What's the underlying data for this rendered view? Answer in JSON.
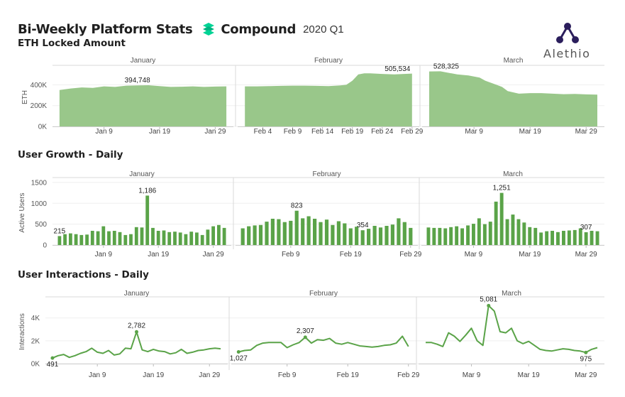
{
  "header": {
    "title": "Bi-Weekly Platform Stats",
    "brand": "Compound",
    "period": "2020 Q1",
    "logo_text": "Alethio"
  },
  "colors": {
    "area_fill": "#99c78a",
    "bar_fill": "#5aa348",
    "line_stroke": "#5aa348",
    "grid": "#d9d9d9",
    "brand": "#00d395",
    "logo": "#2b1e5c"
  },
  "chart_data": [
    {
      "id": "eth_locked",
      "section_title": "ETH Locked Amount",
      "type": "area",
      "ylabel": "ETH",
      "ylim": [
        0,
        560000
      ],
      "yticks": [
        0,
        200000,
        400000
      ],
      "ytick_labels": [
        "0K",
        "200K",
        "400K"
      ],
      "months": [
        {
          "name": "January",
          "days": 31,
          "xticks": [
            9,
            19,
            29
          ],
          "xtick_labels": [
            "Jan 9",
            "Jan 19",
            "Jan 29"
          ],
          "x": [
            1,
            3,
            5,
            7,
            9,
            11,
            13,
            15,
            17,
            19,
            21,
            23,
            25,
            27,
            29,
            31
          ],
          "y": [
            350000,
            365000,
            375000,
            370000,
            385000,
            380000,
            392000,
            394748,
            396000,
            388000,
            380000,
            382000,
            385000,
            380000,
            383000,
            385000
          ],
          "annotation": {
            "x": 15,
            "y": 394748,
            "label": "394,748"
          }
        },
        {
          "name": "February",
          "days": 29,
          "xticks": [
            4,
            9,
            14,
            19,
            24,
            29
          ],
          "xtick_labels": [
            "Feb 4",
            "Feb 9",
            "Feb 14",
            "Feb 19",
            "Feb 24",
            "Feb 29"
          ],
          "x": [
            1,
            3,
            5,
            7,
            9,
            11,
            13,
            15,
            17,
            18,
            19,
            20,
            21,
            22,
            24,
            26,
            28,
            29
          ],
          "y": [
            385000,
            385000,
            387000,
            390000,
            392000,
            392000,
            390000,
            388000,
            395000,
            400000,
            440000,
            500000,
            510000,
            510000,
            505000,
            500000,
            505534,
            508000
          ],
          "annotation": {
            "x": 28,
            "y": 505534,
            "label": "505,534"
          }
        },
        {
          "name": "March",
          "days": 31,
          "xticks": [
            9,
            19,
            29
          ],
          "xtick_labels": [
            "Mar 9",
            "Mar 19",
            "Mar 29"
          ],
          "x": [
            1,
            3,
            5,
            6,
            8,
            10,
            11,
            12,
            13,
            14,
            15,
            17,
            19,
            21,
            23,
            25,
            27,
            29,
            31
          ],
          "y": [
            528325,
            530000,
            510000,
            500000,
            490000,
            470000,
            440000,
            420000,
            400000,
            380000,
            340000,
            315000,
            320000,
            320000,
            315000,
            310000,
            312000,
            308000,
            306000
          ],
          "annotation": {
            "x": 2,
            "y": 528325,
            "label": "528,325"
          }
        }
      ]
    },
    {
      "id": "user_growth",
      "section_title": "User Growth - Daily",
      "type": "bar",
      "ylabel": "Active Users",
      "ylim": [
        0,
        1550
      ],
      "yticks": [
        0,
        500,
        1000,
        1500
      ],
      "ytick_labels": [
        "0",
        "500",
        "1000",
        "1500"
      ],
      "months": [
        {
          "name": "January",
          "days": 31,
          "xticks": [
            9,
            19,
            29
          ],
          "xtick_labels": [
            "Jan 9",
            "Jan 19",
            "Jan 29"
          ],
          "values": [
            215,
            260,
            280,
            260,
            240,
            250,
            340,
            330,
            450,
            330,
            340,
            310,
            240,
            260,
            430,
            420,
            1186,
            410,
            340,
            350,
            310,
            320,
            300,
            260,
            320,
            300,
            240,
            370,
            450,
            480,
            410
          ],
          "annotation": {
            "day": 17,
            "label": "1,186",
            "also": {
              "day": 1,
              "label": "215"
            }
          }
        },
        {
          "name": "February",
          "days": 29,
          "xticks": [
            9,
            19,
            29
          ],
          "xtick_labels": [
            "Feb 9",
            "Feb 19",
            "Feb 29"
          ],
          "values": [
            400,
            450,
            470,
            480,
            560,
            630,
            620,
            550,
            580,
            823,
            640,
            690,
            630,
            550,
            610,
            480,
            570,
            520,
            400,
            440,
            354,
            390,
            460,
            420,
            460,
            490,
            640,
            550,
            410
          ],
          "annotation": {
            "day": 10,
            "label": "823",
            "also": {
              "day": 21,
              "label": "354"
            }
          }
        },
        {
          "name": "March",
          "days": 31,
          "xticks": [
            9,
            19,
            29
          ],
          "xtick_labels": [
            "Mar 9",
            "Mar 19",
            "Mar 29"
          ],
          "values": [
            420,
            410,
            410,
            400,
            430,
            450,
            400,
            470,
            510,
            640,
            500,
            560,
            1040,
            1251,
            620,
            730,
            620,
            540,
            430,
            410,
            300,
            330,
            340,
            310,
            340,
            350,
            360,
            400,
            307,
            340,
            330
          ],
          "annotation": {
            "day": 14,
            "label": "1,251",
            "also": {
              "day": 29,
              "label": "307"
            }
          }
        }
      ]
    },
    {
      "id": "user_interactions",
      "section_title": "User Interactions - Daily",
      "type": "line",
      "ylabel": "Interactions",
      "ylim": [
        0,
        5600
      ],
      "yticks": [
        0,
        2000,
        4000
      ],
      "ytick_labels": [
        "0K",
        "2K",
        "4K"
      ],
      "months": [
        {
          "name": "January",
          "days": 31,
          "xticks": [
            9,
            19,
            29
          ],
          "xtick_labels": [
            "Jan 9",
            "Jan 19",
            "Jan 29"
          ],
          "values": [
            491,
            700,
            800,
            550,
            700,
            900,
            1050,
            1350,
            1000,
            900,
            1150,
            750,
            850,
            1350,
            1300,
            2782,
            1200,
            1050,
            1250,
            1100,
            1050,
            850,
            950,
            1250,
            900,
            1000,
            1150,
            1200,
            1300,
            1350,
            1300
          ],
          "annotation": {
            "day": 16,
            "label": "2,782",
            "also": {
              "day": 1,
              "label": "491"
            }
          }
        },
        {
          "name": "February",
          "days": 29,
          "xticks": [
            9,
            19,
            29
          ],
          "xtick_labels": [
            "Feb 9",
            "Feb 19",
            "Feb 29"
          ],
          "values": [
            1027,
            1150,
            1200,
            1600,
            1800,
            1850,
            1850,
            1850,
            1400,
            1650,
            1850,
            2307,
            1800,
            2100,
            2050,
            2200,
            1800,
            1700,
            1850,
            1700,
            1550,
            1500,
            1450,
            1500,
            1600,
            1650,
            1800,
            2400,
            1500
          ],
          "annotation": {
            "day": 12,
            "label": "2,307",
            "also": {
              "day": 1,
              "label": "1,027"
            }
          }
        },
        {
          "name": "March",
          "days": 31,
          "xticks": [
            9,
            19,
            29
          ],
          "xtick_labels": [
            "Mar 9",
            "Mar 19",
            "Mar 29"
          ],
          "values": [
            1850,
            1850,
            1700,
            1500,
            2700,
            2400,
            1950,
            2500,
            3100,
            2000,
            1600,
            5081,
            4600,
            2800,
            2700,
            3100,
            2000,
            1750,
            1950,
            1600,
            1250,
            1150,
            1100,
            1200,
            1300,
            1250,
            1150,
            1100,
            975,
            1250,
            1400
          ],
          "annotation": {
            "day": 12,
            "label": "5,081",
            "also": {
              "day": 29,
              "label": "975"
            }
          }
        }
      ]
    }
  ]
}
